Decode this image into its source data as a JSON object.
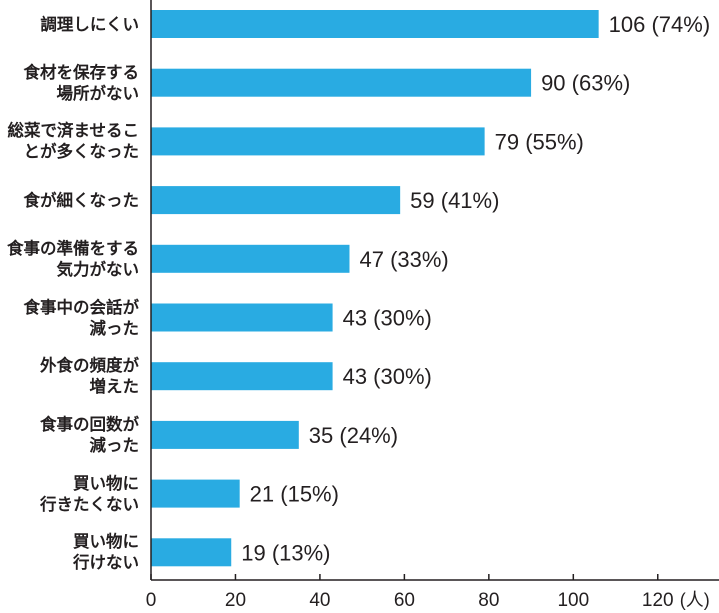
{
  "chart_data": {
    "type": "bar",
    "orientation": "horizontal",
    "categories": [
      "調理しにくい",
      "食材を保存する\n場所がない",
      "総菜で済ませるこ\nとが多くなった",
      "食が細くなった",
      "食事の準備をする\n気力がない",
      "食事中の会話が\n減った",
      "外食の頻度が\n増えた",
      "食事の回数が\n減った",
      "買い物に\n行きたくない",
      "買い物に\n行けない"
    ],
    "values": [
      106,
      90,
      79,
      59,
      47,
      43,
      43,
      35,
      21,
      19
    ],
    "value_labels": [
      "106 (74%)",
      "90 (63%)",
      "79 (55%)",
      "59 (41%)",
      "47 (33%)",
      "43 (30%)",
      "43 (30%)",
      "35 (24%)",
      "21 (15%)",
      "19 (13%)"
    ],
    "xlim": [
      0,
      130
    ],
    "xticks": [
      0,
      20,
      40,
      60,
      80,
      100,
      120
    ],
    "unit": "(人)",
    "bar_color": "#29abe2",
    "grid": false,
    "legend": "none"
  }
}
